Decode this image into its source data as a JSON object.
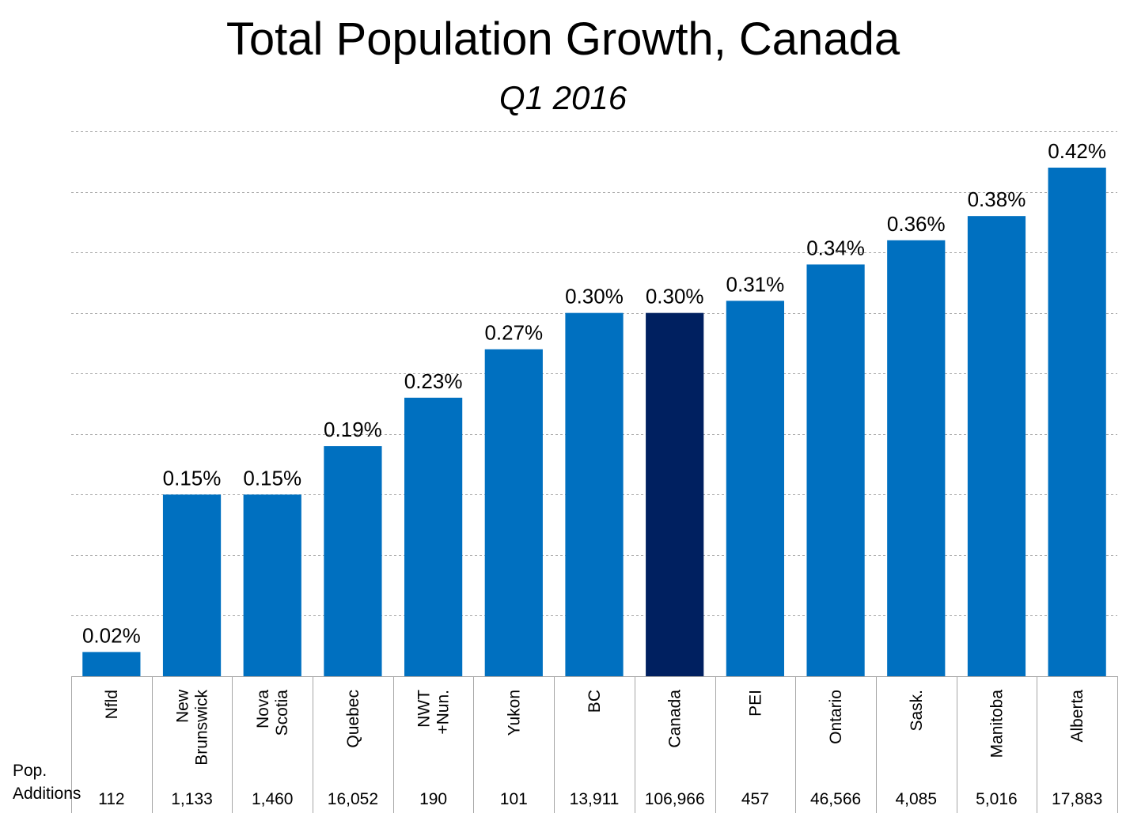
{
  "title": "Total Population Growth, Canada",
  "subtitle": "Q1 2016",
  "row_label_line1": "Pop.",
  "row_label_line2": "Additions",
  "colors": {
    "bar": "#0070C0",
    "highlight": "#002060",
    "grid": "#a6a6a6",
    "table_border": "#a6a6a6"
  },
  "chart_data": {
    "type": "bar",
    "title": "Total Population Growth, Canada",
    "subtitle": "Q1 2016",
    "categories": [
      [
        "Nfld"
      ],
      [
        "New",
        "Brunswick"
      ],
      [
        "Nova",
        "Scotia"
      ],
      [
        "Quebec"
      ],
      [
        "NWT",
        "+Nun."
      ],
      [
        "Yukon"
      ],
      [
        "BC"
      ],
      [
        "Canada"
      ],
      [
        "PEI"
      ],
      [
        "Ontario"
      ],
      [
        "Sask."
      ],
      [
        "Manitoba"
      ],
      [
        "Alberta"
      ]
    ],
    "values": [
      0.02,
      0.15,
      0.15,
      0.19,
      0.23,
      0.27,
      0.3,
      0.3,
      0.31,
      0.34,
      0.36,
      0.38,
      0.42
    ],
    "value_labels": [
      "0.02%",
      "0.15%",
      "0.15%",
      "0.19%",
      "0.23%",
      "0.27%",
      "0.30%",
      "0.30%",
      "0.31%",
      "0.34%",
      "0.36%",
      "0.38%",
      "0.42%"
    ],
    "pop_additions": [
      "112",
      "1,133",
      "1,460",
      "16,052",
      "190",
      "101",
      "13,911",
      "106,966",
      "457",
      "46,566",
      "4,085",
      "5,016",
      "17,883"
    ],
    "highlight_category": "Canada",
    "ylim": [
      0,
      0.45
    ],
    "grid": true,
    "legend": "none"
  }
}
